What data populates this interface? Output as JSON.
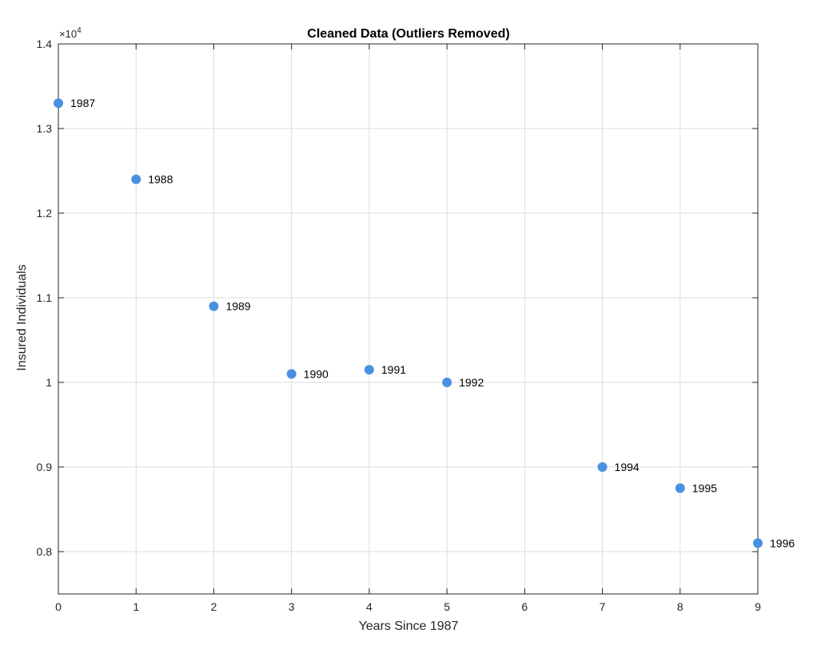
{
  "colors": {
    "point": "#4a90e2",
    "grid": "#dddddd",
    "axis": "#262626",
    "background": "#ffffff"
  },
  "chart_data": {
    "type": "scatter",
    "title": "Cleaned Data (Outliers Removed)",
    "xlabel": "Years Since 1987",
    "ylabel": "Insured Individuals",
    "y_multiplier_label": {
      "base": "×10",
      "exponent": "4"
    },
    "xlim": [
      0,
      9
    ],
    "ylim": [
      0.75,
      1.4
    ],
    "xticks": [
      0,
      1,
      2,
      3,
      4,
      5,
      6,
      7,
      8,
      9
    ],
    "yticks": [
      0.8,
      0.9,
      1.0,
      1.1,
      1.2,
      1.3,
      1.4
    ],
    "ytick_labels": [
      "0.8",
      "0.9",
      "1",
      "1.1",
      "1.2",
      "1.3",
      "1.4"
    ],
    "grid": true,
    "series": [
      {
        "name": "Insured Individuals",
        "points": [
          {
            "x": 0,
            "y": 13300,
            "label": "1987"
          },
          {
            "x": 1,
            "y": 12400,
            "label": "1988"
          },
          {
            "x": 2,
            "y": 10900,
            "label": "1989"
          },
          {
            "x": 3,
            "y": 10100,
            "label": "1990"
          },
          {
            "x": 4,
            "y": 10150,
            "label": "1991"
          },
          {
            "x": 5,
            "y": 10000,
            "label": "1992"
          },
          {
            "x": 7,
            "y": 9000,
            "label": "1994"
          },
          {
            "x": 8,
            "y": 8750,
            "label": "1995"
          },
          {
            "x": 9,
            "y": 8100,
            "label": "1996"
          }
        ]
      }
    ]
  }
}
